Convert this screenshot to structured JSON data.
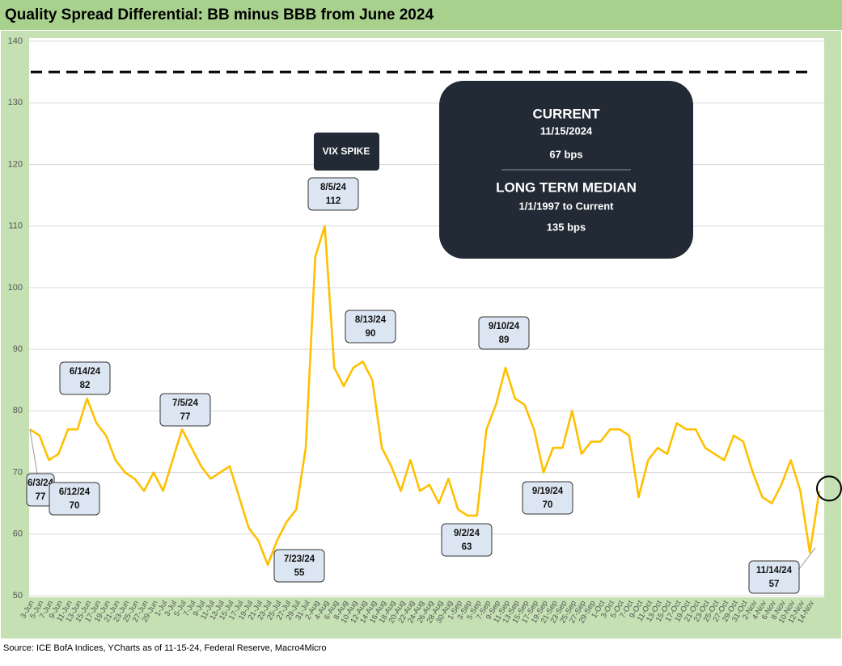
{
  "chart_data": {
    "type": "line",
    "title": "Quality Spread Differential: BB minus BBB from June 2024",
    "source": "Source: ICE BofA Indices, YCharts as of 11-15-24, Federal Reserve, Macro4Micro",
    "categories": [
      "3-Jun",
      "5-Jun",
      "7-Jun",
      "9-Jun",
      "11-Jun",
      "13-Jun",
      "15-Jun",
      "17-Jun",
      "19-Jun",
      "21-Jun",
      "23-Jun",
      "25-Jun",
      "27-Jun",
      "29-Jun",
      "1-Jul",
      "3-Jul",
      "5-Jul",
      "7-Jul",
      "9-Jul",
      "11-Jul",
      "13-Jul",
      "15-Jul",
      "17-Jul",
      "19-Jul",
      "21-Jul",
      "23-Jul",
      "25-Jul",
      "27-Jul",
      "29-Jul",
      "31-Jul",
      "2-Aug",
      "4-Aug",
      "6-Aug",
      "8-Aug",
      "10-Aug",
      "12-Aug",
      "14-Aug",
      "16-Aug",
      "18-Aug",
      "20-Aug",
      "22-Aug",
      "24-Aug",
      "26-Aug",
      "28-Aug",
      "30-Aug",
      "1-Sep",
      "3-Sep",
      "5-Sep",
      "7-Sep",
      "9-Sep",
      "11-Sep",
      "13-Sep",
      "15-Sep",
      "17-Sep",
      "19-Sep",
      "21-Sep",
      "23-Sep",
      "25-Sep",
      "27-Sep",
      "29-Sep",
      "1-Oct",
      "3-Oct",
      "5-Oct",
      "7-Oct",
      "9-Oct",
      "11-Oct",
      "13-Oct",
      "15-Oct",
      "17-Oct",
      "19-Oct",
      "21-Oct",
      "23-Oct",
      "25-Oct",
      "27-Oct",
      "29-Oct",
      "31-Oct",
      "2-Nov",
      "4-Nov",
      "6-Nov",
      "8-Nov",
      "10-Nov",
      "12-Nov",
      "14-Nov",
      null
    ],
    "series": [
      {
        "name": "BB minus BBB",
        "color": "#ffc000",
        "values": [
          77,
          76,
          72,
          73,
          77,
          77,
          82,
          78,
          76,
          72,
          70,
          69,
          67,
          70,
          67,
          72,
          77,
          74,
          71,
          69,
          70,
          71,
          66,
          61,
          59,
          55,
          59,
          62,
          64,
          74,
          105,
          110,
          87,
          84,
          87,
          88,
          85,
          74,
          71,
          67,
          72,
          67,
          68,
          65,
          69,
          64,
          63,
          63,
          77,
          81,
          87,
          82,
          81,
          77,
          70,
          74,
          74,
          80,
          73,
          75,
          75,
          77,
          77,
          76,
          66,
          72,
          74,
          73,
          78,
          77,
          77,
          74,
          73,
          72,
          76,
          75,
          70,
          66,
          65,
          68,
          72,
          67,
          57,
          67
        ]
      }
    ],
    "ylim": [
      50,
      140
    ],
    "yticks": [
      50,
      60,
      70,
      80,
      90,
      100,
      110,
      120,
      130,
      140
    ],
    "grid": true,
    "median_line": 135,
    "annotations": [
      {
        "date": "6/3/24",
        "value": 77
      },
      {
        "date": "6/12/24",
        "value": 70
      },
      {
        "date": "6/14/24",
        "value": 82
      },
      {
        "date": "7/5/24",
        "value": 77
      },
      {
        "date": "7/23/24",
        "value": 55
      },
      {
        "date": "8/5/24",
        "value": 112
      },
      {
        "date": "8/13/24",
        "value": 90
      },
      {
        "date": "9/2/24",
        "value": 63
      },
      {
        "date": "9/10/24",
        "value": 89
      },
      {
        "date": "9/19/24",
        "value": 70
      },
      {
        "date": "11/14/24",
        "value": 57
      }
    ],
    "vix_label": "VIX SPIKE",
    "info_box": {
      "current_title": "CURRENT",
      "current_date": "11/15/2024",
      "current_value": "67 bps",
      "median_title": "LONG TERM MEDIAN",
      "median_period": "1/1/1997 to Current",
      "median_value": "135 bps"
    }
  }
}
